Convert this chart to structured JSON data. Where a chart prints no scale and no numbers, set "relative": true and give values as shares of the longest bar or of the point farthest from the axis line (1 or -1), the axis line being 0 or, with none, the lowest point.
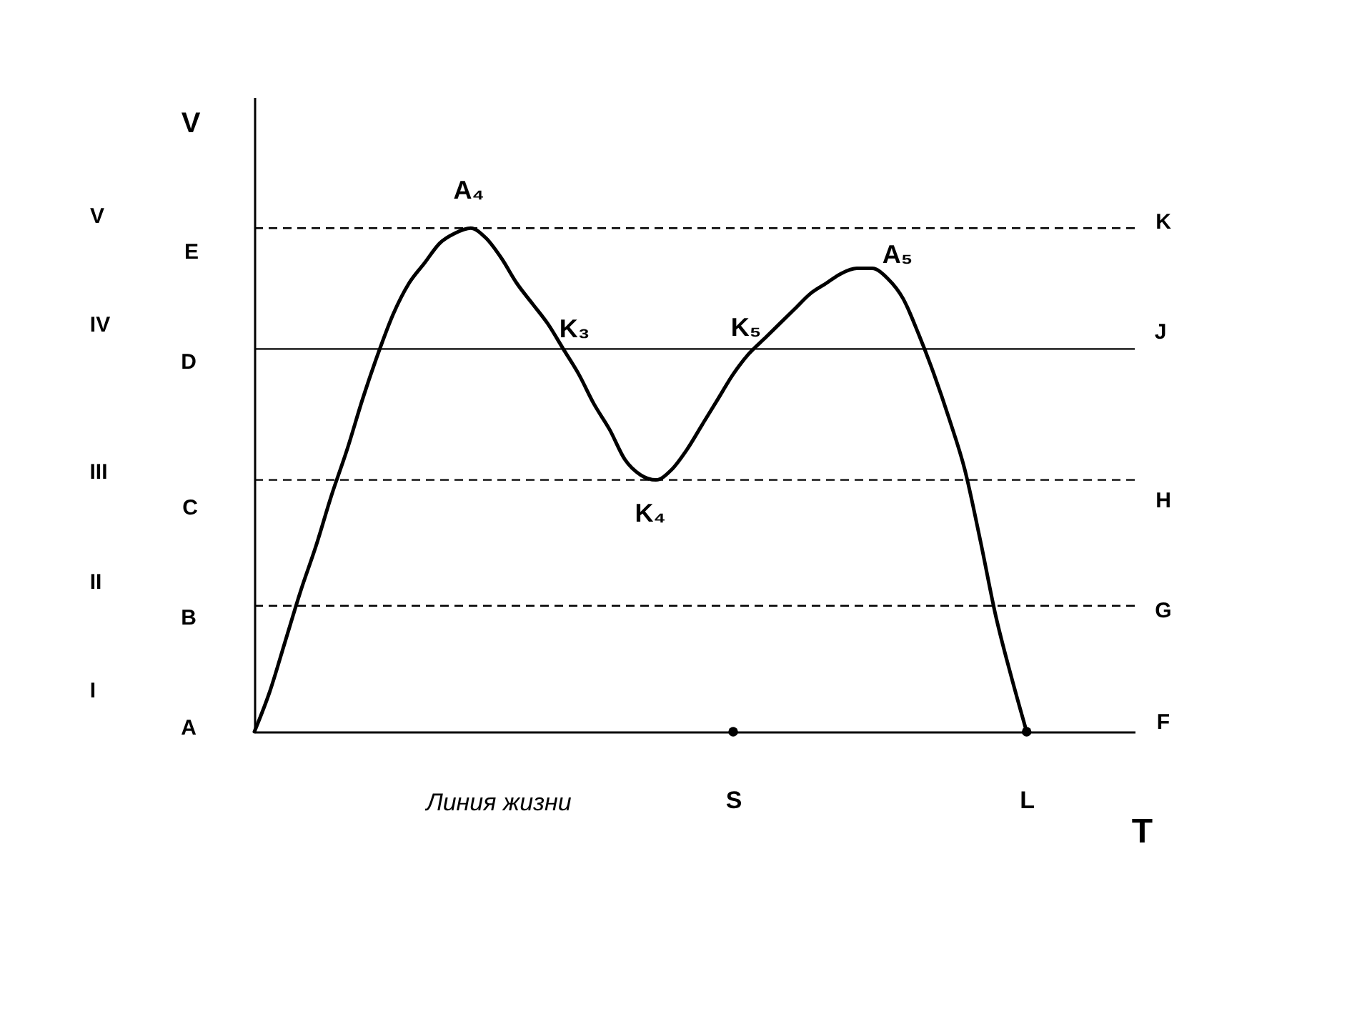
{
  "chart_data": {
    "type": "line",
    "relative": true,
    "ylabel": "V",
    "xlabel": "T",
    "categories": [
      null,
      null,
      null,
      null,
      null,
      null,
      null,
      null,
      null,
      null,
      null,
      null,
      null,
      null,
      null,
      null,
      null,
      null,
      null,
      null,
      null,
      null,
      null,
      null,
      null,
      null,
      null,
      null,
      null,
      null,
      null,
      "S",
      null,
      null,
      null,
      null,
      null,
      null,
      null,
      null,
      null,
      null,
      null,
      null,
      null,
      null,
      null,
      null,
      null,
      null,
      "L",
      null,
      null,
      null,
      null,
      null,
      null,
      null
    ],
    "series": [
      {
        "color": "#000000",
        "values": [
          0,
          0.08,
          0.18,
          0.28,
          0.37,
          0.47,
          0.56,
          0.66,
          0.75,
          0.83,
          0.89,
          0.93,
          0.97,
          0.99,
          1,
          0.98,
          0.94,
          0.89,
          0.85,
          0.81,
          0.76,
          0.71,
          0.65,
          0.6,
          0.54,
          0.51,
          0.5,
          0.52,
          0.56,
          0.61,
          0.66,
          0.71,
          0.75,
          0.78,
          0.81,
          0.84,
          0.87,
          0.89,
          0.91,
          0.92,
          0.92,
          0.9,
          0.86,
          0.79,
          0.71,
          0.62,
          0.52,
          0.38,
          0.23,
          0.11,
          0,
          null,
          null,
          null,
          null,
          null,
          null,
          null
        ]
      },
      {
        "type": "scatter",
        "marker": "circle",
        "color": "#000000",
        "x": [
          "S",
          "L"
        ],
        "values": [
          0,
          0
        ]
      }
    ],
    "ref_lines": [
      {
        "axis": "y",
        "value": 0.25,
        "line_style": "dashed",
        "color": "#000000"
      },
      {
        "axis": "y",
        "value": 0.5,
        "line_style": "dashed",
        "color": "#000000"
      },
      {
        "axis": "y",
        "value": 0.76,
        "line_style": "solid",
        "color": "#000000"
      },
      {
        "axis": "y",
        "value": 1,
        "line_style": "dashed",
        "color": "#000000"
      }
    ],
    "annotations": [
      "A",
      "B",
      "C",
      "D",
      "E",
      "F",
      "G",
      "H",
      "J",
      "K",
      "I",
      "II",
      "III",
      "IV",
      "V",
      "A₄",
      "K₃",
      "K₄",
      "K₅",
      "A₅",
      "Линия жизни"
    ]
  }
}
